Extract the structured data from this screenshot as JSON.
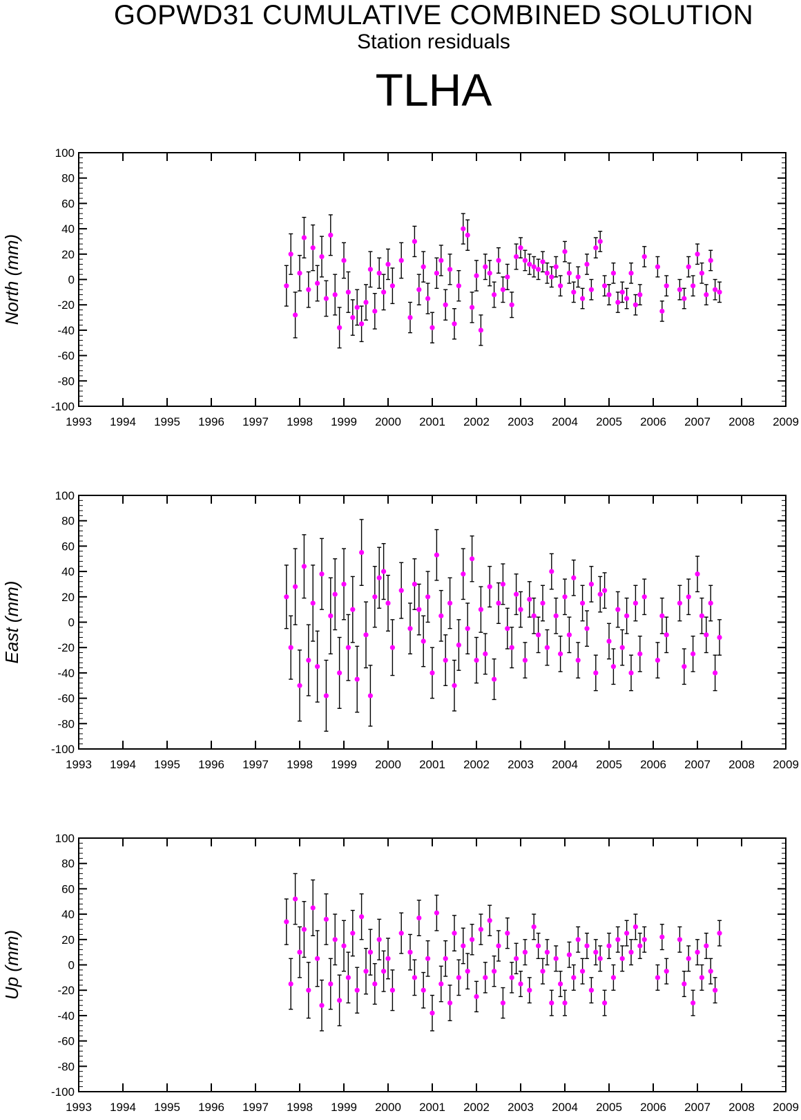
{
  "titles": {
    "main": "GOPWD31 CUMULATIVE COMBINED SOLUTION",
    "sub": "Station residuals",
    "station": "TLHA"
  },
  "colors": {
    "marker": "#ff00ff",
    "error_bar": "#000000",
    "axis": "#000000"
  },
  "chart_data": [
    {
      "type": "scatter",
      "name": "north-panel",
      "ylabel": "North (mm)",
      "xlim": [
        1993,
        2009
      ],
      "ylim": [
        -100,
        100
      ],
      "x_ticks": [
        "1993",
        "1994",
        "1995",
        "1996",
        "1997",
        "1998",
        "1999",
        "2000",
        "2001",
        "2002",
        "2003",
        "2004",
        "2005",
        "2006",
        "2007",
        "2008",
        "2009"
      ],
      "y_ticks": [
        "100",
        "80",
        "60",
        "40",
        "20",
        "0",
        "-20",
        "-40",
        "-60",
        "-80",
        "-100"
      ],
      "error_bars": true,
      "marker_color": "#ff00ff",
      "x": [
        1997.7,
        1997.8,
        1997.9,
        1998.0,
        1998.1,
        1998.2,
        1998.3,
        1998.4,
        1998.5,
        1998.6,
        1998.7,
        1998.8,
        1998.9,
        1999.0,
        1999.1,
        1999.2,
        1999.3,
        1999.4,
        1999.5,
        1999.6,
        1999.7,
        1999.8,
        1999.9,
        2000.0,
        2000.1,
        2000.3,
        2000.5,
        2000.6,
        2000.7,
        2000.8,
        2000.9,
        2001.0,
        2001.1,
        2001.2,
        2001.3,
        2001.4,
        2001.5,
        2001.6,
        2001.7,
        2001.8,
        2001.9,
        2002.0,
        2002.1,
        2002.2,
        2002.3,
        2002.4,
        2002.5,
        2002.6,
        2002.7,
        2002.8,
        2002.9,
        2003.0,
        2003.1,
        2003.2,
        2003.3,
        2003.4,
        2003.5,
        2003.6,
        2003.7,
        2003.8,
        2003.9,
        2004.0,
        2004.1,
        2004.2,
        2004.3,
        2004.4,
        2004.5,
        2004.6,
        2004.7,
        2004.8,
        2004.9,
        2005.0,
        2005.1,
        2005.2,
        2005.3,
        2005.4,
        2005.5,
        2005.6,
        2005.7,
        2005.8,
        2006.1,
        2006.2,
        2006.3,
        2006.6,
        2006.7,
        2006.8,
        2006.9,
        2007.0,
        2007.1,
        2007.2,
        2007.3,
        2007.4,
        2007.5
      ],
      "y": [
        -5,
        20,
        -28,
        5,
        33,
        -8,
        25,
        -3,
        18,
        -15,
        35,
        -12,
        -38,
        15,
        -10,
        -30,
        -22,
        -35,
        -18,
        8,
        -25,
        5,
        -10,
        12,
        -5,
        15,
        -30,
        30,
        -8,
        10,
        -15,
        -38,
        5,
        15,
        -20,
        8,
        -35,
        -5,
        40,
        35,
        -22,
        3,
        -40,
        10,
        5,
        -12,
        15,
        -8,
        2,
        -20,
        18,
        25,
        15,
        12,
        10,
        8,
        14,
        5,
        2,
        10,
        -5,
        22,
        5,
        -10,
        2,
        -15,
        12,
        -8,
        25,
        30,
        -5,
        -12,
        5,
        -18,
        -10,
        -15,
        5,
        -20,
        -12,
        18,
        10,
        -25,
        -5,
        -8,
        -15,
        10,
        -5,
        20,
        5,
        -12,
        15,
        -8,
        -10
      ],
      "err": [
        16,
        16,
        18,
        14,
        16,
        14,
        18,
        14,
        16,
        14,
        16,
        16,
        16,
        14,
        16,
        14,
        14,
        14,
        14,
        14,
        14,
        12,
        14,
        12,
        14,
        14,
        12,
        12,
        12,
        12,
        12,
        12,
        12,
        12,
        12,
        12,
        12,
        12,
        12,
        12,
        12,
        12,
        12,
        10,
        10,
        10,
        10,
        10,
        10,
        10,
        10,
        8,
        8,
        8,
        8,
        8,
        8,
        8,
        8,
        8,
        8,
        8,
        8,
        8,
        8,
        8,
        8,
        8,
        8,
        8,
        8,
        8,
        8,
        8,
        8,
        8,
        8,
        8,
        8,
        8,
        8,
        8,
        8,
        8,
        8,
        8,
        8,
        8,
        8,
        8,
        8,
        8,
        8
      ]
    },
    {
      "type": "scatter",
      "name": "east-panel",
      "ylabel": "East (mm)",
      "xlim": [
        1993,
        2009
      ],
      "ylim": [
        -100,
        100
      ],
      "x_ticks": [
        "1993",
        "1994",
        "1995",
        "1996",
        "1997",
        "1998",
        "1999",
        "2000",
        "2001",
        "2002",
        "2003",
        "2004",
        "2005",
        "2006",
        "2007",
        "2008",
        "2009"
      ],
      "y_ticks": [
        "100",
        "80",
        "60",
        "40",
        "20",
        "0",
        "-20",
        "-40",
        "-60",
        "-80",
        "-100"
      ],
      "error_bars": true,
      "marker_color": "#ff00ff",
      "x": [
        1997.7,
        1997.8,
        1997.9,
        1998.0,
        1998.1,
        1998.2,
        1998.3,
        1998.4,
        1998.5,
        1998.6,
        1998.7,
        1998.8,
        1998.9,
        1999.0,
        1999.1,
        1999.2,
        1999.3,
        1999.4,
        1999.5,
        1999.6,
        1999.7,
        1999.8,
        1999.9,
        2000.0,
        2000.1,
        2000.3,
        2000.5,
        2000.6,
        2000.7,
        2000.8,
        2000.9,
        2001.0,
        2001.1,
        2001.2,
        2001.3,
        2001.4,
        2001.5,
        2001.6,
        2001.7,
        2001.8,
        2001.9,
        2002.0,
        2002.1,
        2002.2,
        2002.3,
        2002.4,
        2002.5,
        2002.6,
        2002.7,
        2002.8,
        2002.9,
        2003.0,
        2003.1,
        2003.2,
        2003.3,
        2003.4,
        2003.5,
        2003.6,
        2003.7,
        2003.8,
        2003.9,
        2004.0,
        2004.1,
        2004.2,
        2004.3,
        2004.4,
        2004.5,
        2004.6,
        2004.7,
        2004.8,
        2004.9,
        2005.0,
        2005.1,
        2005.2,
        2005.3,
        2005.4,
        2005.5,
        2005.6,
        2005.7,
        2005.8,
        2006.1,
        2006.2,
        2006.3,
        2006.6,
        2006.7,
        2006.8,
        2006.9,
        2007.0,
        2007.1,
        2007.2,
        2007.3,
        2007.4,
        2007.5
      ],
      "y": [
        20,
        -20,
        28,
        -50,
        44,
        -30,
        15,
        -35,
        38,
        -58,
        5,
        22,
        -40,
        30,
        -20,
        10,
        -45,
        55,
        -10,
        -58,
        20,
        35,
        40,
        15,
        -20,
        25,
        -5,
        30,
        10,
        -15,
        20,
        -40,
        53,
        5,
        -30,
        15,
        -50,
        -18,
        38,
        -5,
        50,
        -30,
        10,
        -25,
        28,
        -45,
        15,
        30,
        -5,
        -20,
        22,
        10,
        -30,
        18,
        5,
        -10,
        15,
        -20,
        40,
        5,
        -25,
        20,
        -10,
        35,
        -30,
        15,
        -5,
        30,
        -40,
        22,
        25,
        -15,
        -35,
        10,
        -20,
        5,
        -40,
        15,
        -25,
        20,
        -30,
        5,
        -10,
        15,
        -35,
        20,
        -25,
        38,
        5,
        -10,
        15,
        -40,
        -12
      ],
      "err": [
        25,
        25,
        30,
        28,
        25,
        28,
        30,
        28,
        28,
        28,
        30,
        28,
        28,
        28,
        26,
        26,
        26,
        26,
        26,
        24,
        24,
        24,
        22,
        22,
        22,
        22,
        20,
        20,
        20,
        20,
        20,
        20,
        20,
        20,
        20,
        20,
        20,
        20,
        20,
        20,
        18,
        18,
        18,
        16,
        16,
        16,
        16,
        16,
        16,
        16,
        16,
        14,
        14,
        14,
        14,
        14,
        14,
        14,
        14,
        14,
        14,
        14,
        14,
        14,
        14,
        14,
        14,
        14,
        14,
        14,
        14,
        14,
        14,
        14,
        14,
        14,
        14,
        14,
        14,
        14,
        14,
        14,
        14,
        14,
        14,
        14,
        14,
        14,
        14,
        14,
        14,
        14,
        14
      ]
    },
    {
      "type": "scatter",
      "name": "up-panel",
      "ylabel": "Up (mm)",
      "xlim": [
        1993,
        2009
      ],
      "ylim": [
        -100,
        100
      ],
      "x_ticks": [
        "1993",
        "1994",
        "1995",
        "1996",
        "1997",
        "1998",
        "1999",
        "2000",
        "2001",
        "2002",
        "2003",
        "2004",
        "2005",
        "2006",
        "2007",
        "2008",
        "2009"
      ],
      "y_ticks": [
        "100",
        "80",
        "60",
        "40",
        "20",
        "0",
        "-20",
        "-40",
        "-60",
        "-80",
        "-100"
      ],
      "error_bars": true,
      "marker_color": "#ff00ff",
      "x": [
        1997.7,
        1997.8,
        1997.9,
        1998.0,
        1998.1,
        1998.2,
        1998.3,
        1998.4,
        1998.5,
        1998.6,
        1998.7,
        1998.8,
        1998.9,
        1999.0,
        1999.1,
        1999.2,
        1999.3,
        1999.4,
        1999.5,
        1999.6,
        1999.7,
        1999.8,
        1999.9,
        2000.0,
        2000.1,
        2000.3,
        2000.5,
        2000.6,
        2000.7,
        2000.8,
        2000.9,
        2001.0,
        2001.1,
        2001.2,
        2001.3,
        2001.4,
        2001.5,
        2001.6,
        2001.7,
        2001.8,
        2001.9,
        2002.0,
        2002.1,
        2002.2,
        2002.3,
        2002.4,
        2002.5,
        2002.6,
        2002.7,
        2002.8,
        2002.9,
        2003.0,
        2003.1,
        2003.2,
        2003.3,
        2003.4,
        2003.5,
        2003.6,
        2003.7,
        2003.8,
        2003.9,
        2004.0,
        2004.1,
        2004.2,
        2004.3,
        2004.4,
        2004.5,
        2004.6,
        2004.7,
        2004.8,
        2004.9,
        2005.0,
        2005.1,
        2005.2,
        2005.3,
        2005.4,
        2005.5,
        2005.6,
        2005.7,
        2005.8,
        2006.1,
        2006.2,
        2006.3,
        2006.6,
        2006.7,
        2006.8,
        2006.9,
        2007.0,
        2007.1,
        2007.2,
        2007.3,
        2007.4,
        2007.5
      ],
      "y": [
        34,
        -15,
        52,
        10,
        28,
        -20,
        45,
        5,
        -32,
        36,
        -15,
        20,
        -28,
        15,
        -10,
        25,
        -20,
        38,
        -5,
        10,
        -15,
        20,
        -5,
        5,
        -20,
        25,
        10,
        -10,
        37,
        -20,
        5,
        -38,
        41,
        -15,
        5,
        -30,
        25,
        -10,
        15,
        -5,
        20,
        -25,
        28,
        -10,
        35,
        -5,
        15,
        -30,
        25,
        -10,
        5,
        -15,
        10,
        -20,
        30,
        15,
        -5,
        10,
        -30,
        5,
        -15,
        -30,
        8,
        -10,
        20,
        -5,
        15,
        -20,
        10,
        5,
        -30,
        15,
        -10,
        20,
        5,
        25,
        10,
        30,
        15,
        20,
        -10,
        22,
        -5,
        20,
        -15,
        5,
        -30,
        10,
        -10,
        15,
        -5,
        -20,
        25
      ],
      "err": [
        18,
        20,
        20,
        20,
        22,
        22,
        22,
        22,
        20,
        20,
        20,
        20,
        20,
        20,
        20,
        18,
        18,
        18,
        18,
        18,
        16,
        16,
        16,
        16,
        16,
        16,
        14,
        14,
        14,
        14,
        14,
        14,
        14,
        14,
        14,
        14,
        14,
        14,
        14,
        14,
        12,
        12,
        12,
        12,
        12,
        12,
        12,
        12,
        12,
        12,
        12,
        10,
        10,
        10,
        10,
        10,
        10,
        10,
        10,
        10,
        10,
        10,
        10,
        10,
        10,
        10,
        10,
        10,
        10,
        10,
        10,
        10,
        10,
        10,
        10,
        10,
        10,
        10,
        10,
        10,
        10,
        10,
        10,
        10,
        10,
        10,
        10,
        10,
        10,
        10,
        10,
        10,
        10
      ]
    }
  ]
}
